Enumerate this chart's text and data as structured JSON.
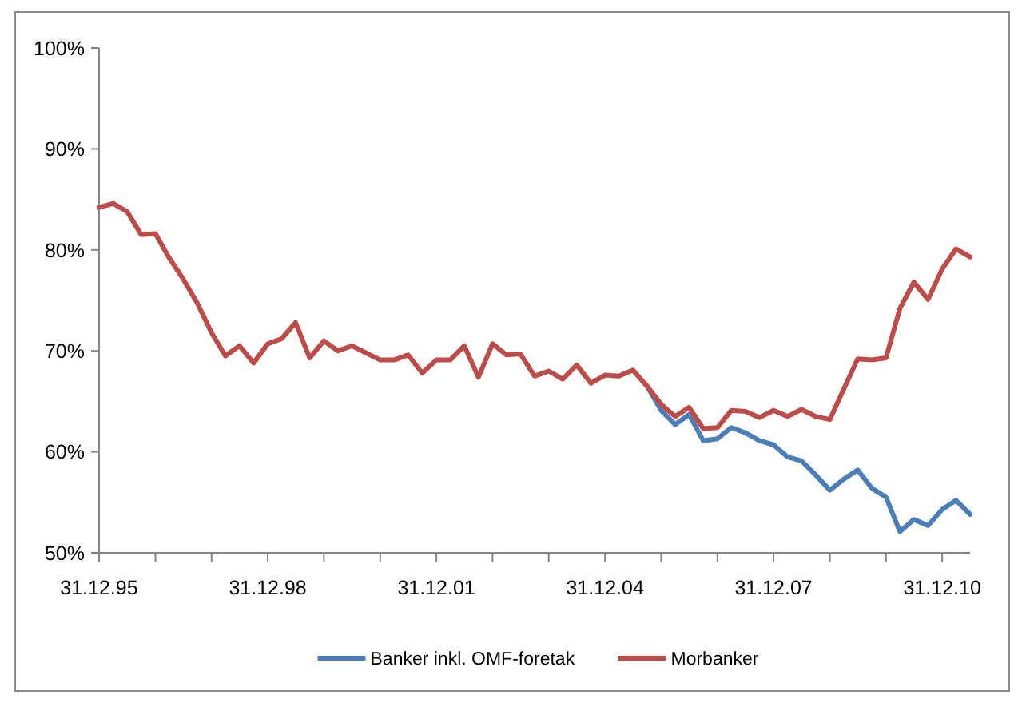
{
  "chart_data": {
    "type": "line",
    "x": [
      "1995-12-31",
      "1996-03-31",
      "1996-06-30",
      "1996-09-30",
      "1996-12-31",
      "1997-03-31",
      "1997-06-30",
      "1997-09-30",
      "1997-12-31",
      "1998-03-31",
      "1998-06-30",
      "1998-09-30",
      "1998-12-31",
      "1999-03-31",
      "1999-06-30",
      "1999-09-30",
      "1999-12-31",
      "2000-03-31",
      "2000-06-30",
      "2000-09-30",
      "2000-12-31",
      "2001-03-31",
      "2001-06-30",
      "2001-09-30",
      "2001-12-31",
      "2002-03-31",
      "2002-06-30",
      "2002-09-30",
      "2002-12-31",
      "2003-03-31",
      "2003-06-30",
      "2003-09-30",
      "2003-12-31",
      "2004-03-31",
      "2004-06-30",
      "2004-09-30",
      "2004-12-31",
      "2005-03-31",
      "2005-06-30",
      "2005-09-30",
      "2005-12-31",
      "2006-03-31",
      "2006-06-30",
      "2006-09-30",
      "2006-12-31",
      "2007-03-31",
      "2007-06-30",
      "2007-09-30",
      "2007-12-31",
      "2008-03-31",
      "2008-06-30",
      "2008-09-30",
      "2008-12-31",
      "2009-03-31",
      "2009-06-30",
      "2009-09-30",
      "2009-12-31",
      "2010-03-31",
      "2010-06-30",
      "2010-09-30",
      "2010-12-31",
      "2011-03-31",
      "2011-06-30"
    ],
    "series": [
      {
        "name": "Banker inkl. OMF-foretak",
        "color": "#4a7ebb",
        "values": [
          null,
          null,
          null,
          null,
          null,
          null,
          null,
          null,
          null,
          null,
          null,
          null,
          null,
          null,
          null,
          null,
          null,
          null,
          null,
          null,
          null,
          null,
          null,
          null,
          null,
          null,
          null,
          null,
          null,
          null,
          null,
          null,
          null,
          null,
          null,
          null,
          null,
          null,
          null,
          66.5,
          64.1,
          62.7,
          63.7,
          61.1,
          61.3,
          62.4,
          61.9,
          61.1,
          60.7,
          59.5,
          59.1,
          57.7,
          56.2,
          57.3,
          58.2,
          56.4,
          55.5,
          52.1,
          53.3,
          52.7,
          54.3,
          55.2,
          53.8
        ]
      },
      {
        "name": "Morbanker",
        "color": "#be4b48",
        "values": [
          84.2,
          84.6,
          83.8,
          81.5,
          81.6,
          79.2,
          77.1,
          74.7,
          71.8,
          69.5,
          70.5,
          68.8,
          70.7,
          71.2,
          72.8,
          69.3,
          71.0,
          70.0,
          70.5,
          69.8,
          69.1,
          69.1,
          69.6,
          67.8,
          69.1,
          69.1,
          70.5,
          67.4,
          70.7,
          69.6,
          69.7,
          67.5,
          68.0,
          67.2,
          68.6,
          66.8,
          67.6,
          67.5,
          68.1,
          66.5,
          64.7,
          63.5,
          64.4,
          62.3,
          62.4,
          64.1,
          64.0,
          63.4,
          64.1,
          63.5,
          64.2,
          63.5,
          63.2,
          66.2,
          69.2,
          69.1,
          69.3,
          74.2,
          76.8,
          75.1,
          78.1,
          80.1,
          79.3
        ]
      }
    ],
    "ylim": [
      50,
      100
    ],
    "yticks": [
      {
        "value": 50,
        "label": "50%"
      },
      {
        "value": 60,
        "label": "60%"
      },
      {
        "value": 70,
        "label": "70%"
      },
      {
        "value": 80,
        "label": "80%"
      },
      {
        "value": 90,
        "label": "90%"
      },
      {
        "value": 100,
        "label": "100%"
      }
    ],
    "xlim": [
      "1995-12-31",
      "2011-06-30"
    ],
    "xticks": [
      {
        "value": "1995-12-31",
        "label": "31.12.95"
      },
      {
        "value": "1996-12-31",
        "label": null
      },
      {
        "value": "1997-12-31",
        "label": null
      },
      {
        "value": "1998-12-31",
        "label": "31.12.98"
      },
      {
        "value": "1999-12-31",
        "label": null
      },
      {
        "value": "2000-12-31",
        "label": null
      },
      {
        "value": "2001-12-31",
        "label": "31.12.01"
      },
      {
        "value": "2002-12-31",
        "label": null
      },
      {
        "value": "2003-12-31",
        "label": null
      },
      {
        "value": "2004-12-31",
        "label": "31.12.04"
      },
      {
        "value": "2005-12-31",
        "label": null
      },
      {
        "value": "2006-12-31",
        "label": null
      },
      {
        "value": "2007-12-31",
        "label": "31.12.07"
      },
      {
        "value": "2008-12-31",
        "label": null
      },
      {
        "value": "2009-12-31",
        "label": null
      },
      {
        "value": "2010-12-31",
        "label": "31.12.10"
      }
    ],
    "legend": "bottom",
    "line_style": "solid"
  }
}
